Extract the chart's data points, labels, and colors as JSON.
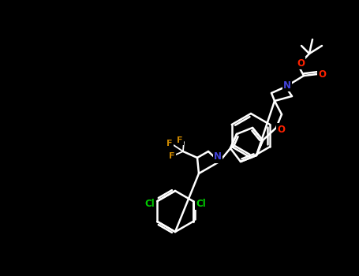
{
  "background_color": "#000000",
  "bond_color": "#ffffff",
  "bond_width": 1.5,
  "atom_colors": {
    "N": "#4444ff",
    "O": "#ff2200",
    "F": "#cc8800",
    "Cl": "#00cc00",
    "C": "#ffffff"
  },
  "font_size_atom": 9,
  "fig_width": 4.55,
  "fig_height": 3.5,
  "dpi": 100
}
